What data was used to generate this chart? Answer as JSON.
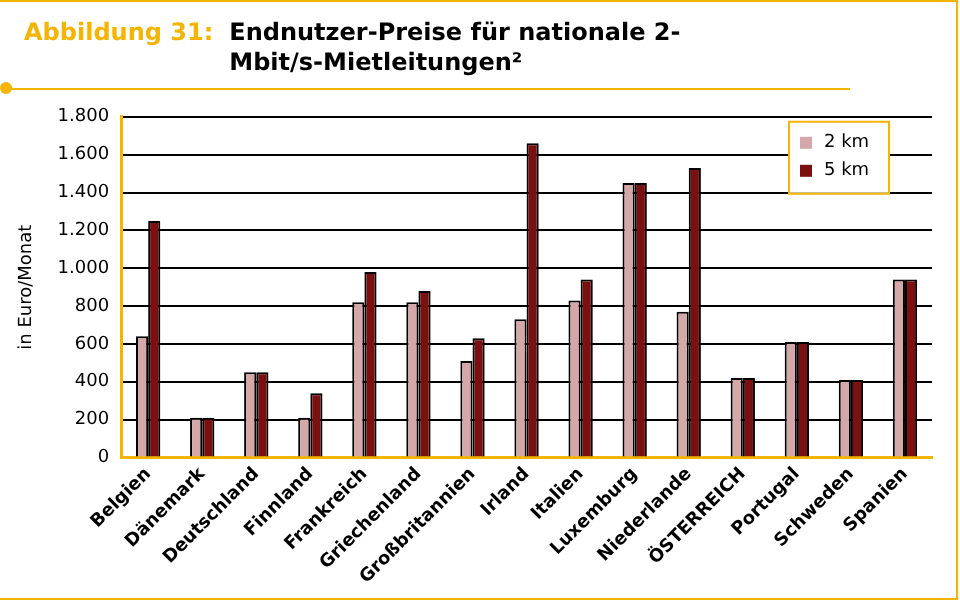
{
  "chart_data": {
    "type": "bar",
    "title": "Abbildung 31: Endnutzer-Preise für nationale 2-Mbit/s-Mietleitungen²",
    "ylabel": "in Euro/Monat",
    "categories": [
      "Belgien",
      "Dänemark",
      "Deutschland",
      "Finnland",
      "Frankreich",
      "Griechenland",
      "Großbritannien",
      "Irland",
      "Italien",
      "Luxemburg",
      "Niederlande",
      "ÖSTERREICH",
      "Portugal",
      "Schweden",
      "Spanien"
    ],
    "series": [
      {
        "name": "2 km",
        "color": "#d4a8a8",
        "values": [
          640,
          210,
          450,
          210,
          820,
          820,
          510,
          730,
          830,
          1450,
          770,
          420,
          610,
          410,
          940
        ]
      },
      {
        "name": "5 km",
        "color": "#7a1010",
        "values": [
          1250,
          210,
          450,
          340,
          980,
          880,
          630,
          1660,
          940,
          1450,
          1530,
          420,
          610,
          410,
          940
        ]
      }
    ],
    "ylim": [
      0,
      1800
    ],
    "yticks": [
      0,
      200,
      400,
      600,
      800,
      {
        "value": 1000,
        "label": "1.000"
      },
      {
        "value": 1200,
        "label": "1.200"
      },
      {
        "value": 1400,
        "label": "1.400"
      },
      {
        "value": 1600,
        "label": "1.600"
      },
      {
        "value": 1800,
        "label": "1.800"
      }
    ],
    "grid": "y",
    "legend": "top right"
  }
}
